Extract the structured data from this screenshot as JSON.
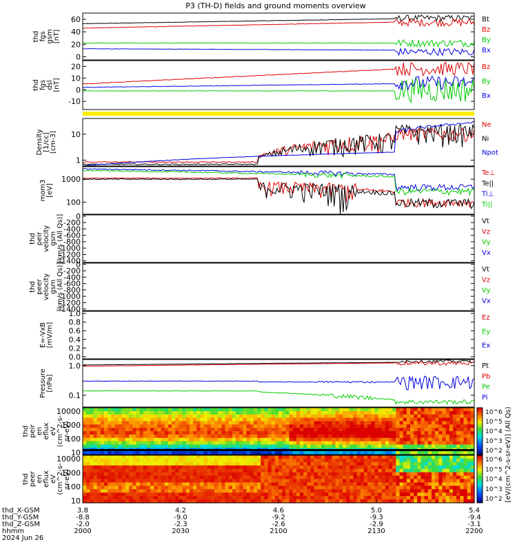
{
  "title": "P3 (TH-D) fields and ground moments overview",
  "date_label": "2024 Jun 26",
  "colors": {
    "black": "#000000",
    "red": "#dd0000",
    "green": "#00cc00",
    "blue": "#0000dd",
    "yellow": "#ffee00"
  },
  "xaxis": {
    "ticks": [
      "2000",
      "2030",
      "2100",
      "2130",
      "2200"
    ],
    "rows": [
      {
        "name": "thd_X-GSM",
        "values": [
          "3.8",
          "4.2",
          "4.6",
          "5.0",
          "5.4"
        ]
      },
      {
        "name": "thd_Y-GSM",
        "values": [
          "-8.8",
          "-9.0",
          "-9.2",
          "-9.3",
          "-9.4"
        ]
      },
      {
        "name": "thd_Z-GSM",
        "values": [
          "-2.0",
          "-2.3",
          "-2.6",
          "-2.9",
          "-3.1"
        ]
      },
      {
        "name": "hhmm",
        "values": [
          "2000",
          "2030",
          "2100",
          "2130",
          "2200"
        ]
      }
    ]
  },
  "colorbar": {
    "ticks": [
      "10^2",
      "10^3",
      "10^4",
      "10^5",
      "10^6"
    ],
    "label": "[eV/(cm^2-s-sr-eV)] (All Qs)"
  },
  "chart_data": [
    {
      "type": "line",
      "id": "fgs_gsm",
      "ylabel": [
        "thd",
        "fgs",
        "gsm",
        "[nT]"
      ],
      "yticks": [
        "0",
        "20",
        "40",
        "60"
      ],
      "ylim": [
        -5,
        70
      ],
      "series": [
        {
          "name": "Bt",
          "color": "black"
        },
        {
          "name": "Bz",
          "color": "red"
        },
        {
          "name": "By",
          "color": "green"
        },
        {
          "name": "Bx",
          "color": "blue"
        }
      ]
    },
    {
      "type": "line",
      "id": "fgs_dsl",
      "ylabel": [
        "thd",
        "fgs",
        "dsl",
        "[nT]"
      ],
      "yticks": [
        "-10",
        "0",
        "10",
        "20"
      ],
      "ylim": [
        -17,
        25
      ],
      "series": [
        {
          "name": "Bz",
          "color": "red"
        },
        {
          "name": "By",
          "color": "green"
        },
        {
          "name": "Bx",
          "color": "blue"
        }
      ]
    },
    {
      "type": "line",
      "id": "density",
      "ylabel": [
        "Density",
        "[1/cc]",
        "[cm-3]"
      ],
      "yticks": [
        "1",
        "10"
      ],
      "ylim": [
        0.6,
        40
      ],
      "scale": "log",
      "series": [
        {
          "name": "Ne",
          "color": "red"
        },
        {
          "name": "Ni",
          "color": "black"
        },
        {
          "name": "Npot",
          "color": "blue"
        }
      ]
    },
    {
      "type": "line",
      "id": "temp",
      "ylabel": [
        "mom3",
        "[eV]"
      ],
      "yticks": [
        "100",
        "1000"
      ],
      "ylim": [
        30,
        3500
      ],
      "scale": "log",
      "series": [
        {
          "name": "Te⊥",
          "color": "red"
        },
        {
          "name": "Te||",
          "color": "black"
        },
        {
          "name": "Ti⊥",
          "color": "blue"
        },
        {
          "name": "Ti||",
          "color": "green"
        }
      ]
    },
    {
      "type": "line",
      "id": "peir_vel",
      "ylabel": [
        "thd",
        "peir",
        "velocity",
        "gsm",
        "[km/s (All Qs)]"
      ],
      "yticks": [
        "0",
        "-200",
        "-400",
        "-600",
        "-800",
        "-1000",
        "-1200",
        "-1400"
      ],
      "ylim": [
        -1450,
        40
      ],
      "series": [
        {
          "name": "Vt",
          "color": "black"
        },
        {
          "name": "Vz",
          "color": "red"
        },
        {
          "name": "Vy",
          "color": "green"
        },
        {
          "name": "Vx",
          "color": "blue"
        }
      ]
    },
    {
      "type": "line",
      "id": "peer_vel",
      "ylabel": [
        "thd",
        "peer",
        "velocity",
        "gsm",
        "[km/s (All Qs)]"
      ],
      "yticks": [
        "0",
        "-200",
        "-400",
        "-600",
        "-800",
        "-1000",
        "-1200",
        "-1400"
      ],
      "ylim": [
        -1450,
        40
      ],
      "series": [
        {
          "name": "Vt",
          "color": "black"
        },
        {
          "name": "Vz",
          "color": "red"
        },
        {
          "name": "Vy",
          "color": "green"
        },
        {
          "name": "Vx",
          "color": "blue"
        }
      ]
    },
    {
      "type": "line",
      "id": "efield",
      "ylabel": [
        "E=-VxB",
        "[mV/m]"
      ],
      "yticks": [
        "0.0",
        "0.2",
        "0.4",
        "0.6",
        "0.8",
        "1.0"
      ],
      "ylim": [
        -0.05,
        1.05
      ],
      "series": [
        {
          "name": "Ez",
          "color": "red"
        },
        {
          "name": "Ey",
          "color": "green"
        },
        {
          "name": "Ex",
          "color": "blue"
        }
      ]
    },
    {
      "type": "line",
      "id": "pressure",
      "ylabel": [
        "Pressure",
        "[nPa]"
      ],
      "yticks": [
        "0.1",
        "1.0"
      ],
      "ylim": [
        0.04,
        1.6
      ],
      "scale": "log",
      "series": [
        {
          "name": "Pt",
          "color": "black"
        },
        {
          "name": "Pb",
          "color": "red"
        },
        {
          "name": "Pe",
          "color": "green"
        },
        {
          "name": "Pi",
          "color": "blue"
        }
      ]
    },
    {
      "type": "heatmap",
      "id": "peir_en",
      "ylabel": [
        "thd",
        "peir",
        "en",
        "eflux",
        "eV",
        "(cm^2-s-",
        "sr-eV)"
      ],
      "yticks": [
        "10",
        "100",
        "1000",
        "10000"
      ],
      "ylim": [
        7,
        18000
      ],
      "scale": "log"
    },
    {
      "type": "heatmap",
      "id": "peer_en",
      "ylabel": [
        "thd",
        "peer",
        "en",
        "eflux",
        "eV",
        "(cm^2-s-",
        "sr-eV)"
      ],
      "yticks": [
        "10",
        "100",
        "1000",
        "10000"
      ],
      "ylim": [
        7,
        18000
      ],
      "scale": "log"
    }
  ]
}
